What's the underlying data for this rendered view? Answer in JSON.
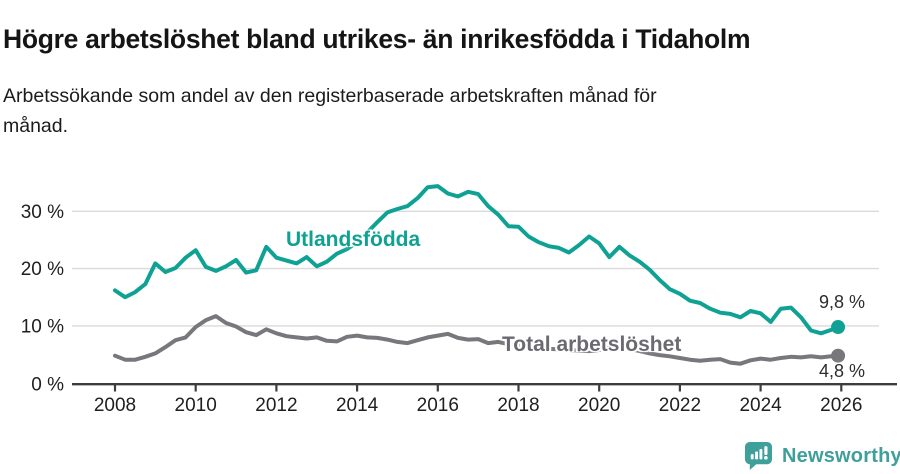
{
  "header": {
    "title": "Högre arbetslöshet bland utrikes- än inrikesfödda i Tidaholm",
    "subtitle": "Arbetssökande som andel av den registerbaserade arbetskraften månad för\nmånad."
  },
  "footer": {
    "brand": "Newsworthy",
    "brand_color": "#3f9f9a",
    "logo_icon": "speech-bubble-bar-chart-icon"
  },
  "chart_data": {
    "type": "line",
    "title": "Högre arbetslöshet bland utrikes- än inrikesfödda i Tidaholm",
    "subtitle": "Arbetssökande som andel av den registerbaserade arbetskraften månad för månad.",
    "grid": "horizontal",
    "legend_position": "inline-labels",
    "colors": {
      "grid": "#dadada",
      "axis": "#3d3d3d",
      "tick_text": "#1f1f1f"
    },
    "x_axis": {
      "ticks": [
        2008,
        2010,
        2012,
        2014,
        2016,
        2018,
        2020,
        2022,
        2024,
        2026
      ],
      "labels": [
        "2008",
        "2010",
        "2012",
        "2014",
        "2016",
        "2018",
        "2020",
        "2022",
        "2024",
        "2026"
      ],
      "range": [
        2006.9,
        2027.4
      ]
    },
    "y_axis": {
      "ticks": [
        0,
        10,
        20,
        30
      ],
      "labels": [
        "0 %",
        "10 %",
        "20 %",
        "30 %"
      ],
      "range": [
        0,
        36.5
      ],
      "unit": "%"
    },
    "x": [
      2008.0,
      2008.25,
      2008.5,
      2008.75,
      2009.0,
      2009.25,
      2009.5,
      2009.75,
      2010.0,
      2010.25,
      2010.5,
      2010.75,
      2011.0,
      2011.25,
      2011.5,
      2011.75,
      2012.0,
      2012.25,
      2012.5,
      2012.75,
      2013.0,
      2013.25,
      2013.5,
      2013.75,
      2014.0,
      2014.25,
      2014.5,
      2014.75,
      2015.0,
      2015.25,
      2015.5,
      2015.75,
      2016.0,
      2016.25,
      2016.5,
      2016.75,
      2017.0,
      2017.25,
      2017.5,
      2017.75,
      2018.0,
      2018.25,
      2018.5,
      2018.75,
      2019.0,
      2019.25,
      2019.5,
      2019.75,
      2020.0,
      2020.25,
      2020.5,
      2020.75,
      2021.0,
      2021.25,
      2021.5,
      2021.75,
      2022.0,
      2022.25,
      2022.5,
      2022.75,
      2023.0,
      2023.25,
      2023.5,
      2023.75,
      2024.0,
      2024.25,
      2024.5,
      2024.75,
      2025.0,
      2025.25,
      2025.5,
      2025.75,
      2025.92
    ],
    "series": [
      {
        "name": "Utlandsfödda",
        "color": "#0fa294",
        "end_label": "9,8 %",
        "end_value": 9.8,
        "values": [
          16.2,
          15.0,
          15.9,
          17.3,
          20.9,
          19.4,
          20.1,
          21.9,
          23.2,
          20.3,
          19.6,
          20.4,
          21.5,
          19.3,
          19.7,
          23.8,
          21.9,
          21.4,
          20.9,
          22.0,
          20.4,
          21.2,
          22.6,
          23.4,
          24.6,
          26.3,
          28.1,
          29.8,
          30.4,
          30.9,
          32.3,
          34.2,
          34.4,
          33.1,
          32.6,
          33.4,
          33.0,
          30.9,
          29.4,
          27.4,
          27.3,
          25.6,
          24.6,
          23.9,
          23.6,
          22.8,
          24.1,
          25.6,
          24.4,
          22.0,
          23.8,
          22.3,
          21.2,
          19.8,
          18.0,
          16.4,
          15.6,
          14.4,
          14.0,
          13.0,
          12.3,
          12.1,
          11.5,
          12.6,
          12.2,
          10.7,
          13.0,
          13.2,
          11.5,
          9.2,
          8.7,
          9.3,
          9.8
        ]
      },
      {
        "name": "Total arbetslöshet",
        "color": "#77777c",
        "label_color": "#6a6a70",
        "end_label": "4,8 %",
        "end_value": 4.8,
        "values": [
          4.8,
          4.1,
          4.1,
          4.6,
          5.2,
          6.3,
          7.5,
          8.0,
          9.8,
          11.0,
          11.7,
          10.5,
          9.9,
          8.9,
          8.4,
          9.4,
          8.7,
          8.2,
          8.0,
          7.8,
          8.0,
          7.4,
          7.3,
          8.1,
          8.3,
          8.0,
          7.9,
          7.6,
          7.2,
          7.0,
          7.5,
          8.0,
          8.3,
          8.6,
          7.9,
          7.6,
          7.7,
          7.0,
          7.2,
          6.8,
          6.6,
          6.3,
          6.1,
          6.0,
          5.9,
          5.8,
          5.7,
          5.6,
          5.8,
          6.3,
          6.5,
          6.0,
          5.6,
          5.2,
          4.9,
          4.7,
          4.4,
          4.1,
          3.9,
          4.1,
          4.2,
          3.6,
          3.4,
          4.0,
          4.3,
          4.1,
          4.4,
          4.6,
          4.5,
          4.7,
          4.5,
          4.7,
          4.8
        ]
      }
    ]
  }
}
